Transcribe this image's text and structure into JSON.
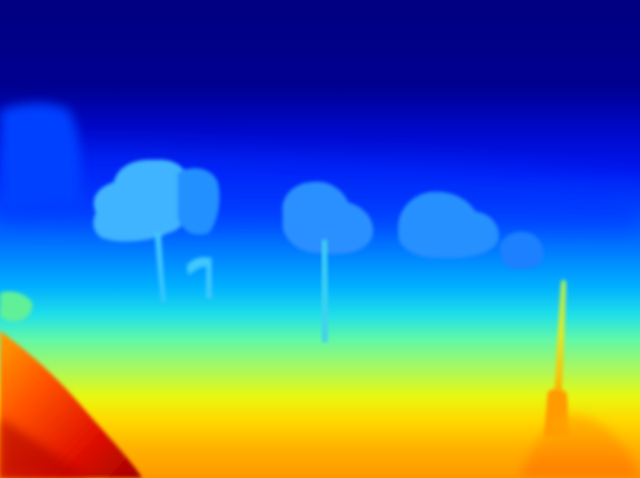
{
  "image": {
    "kind": "depth-map",
    "colormap": "jet",
    "colors": {
      "far": "#00007F",
      "deep_blue": "#0010E8",
      "blue": "#0048FF",
      "azure": "#0090FF",
      "cyan": "#10D8F0",
      "aqua_green": "#40F0C0",
      "green": "#9CF860",
      "yellow": "#F8F000",
      "orange": "#FF9800",
      "red_orange": "#FF4000",
      "near": "#A00000"
    }
  }
}
